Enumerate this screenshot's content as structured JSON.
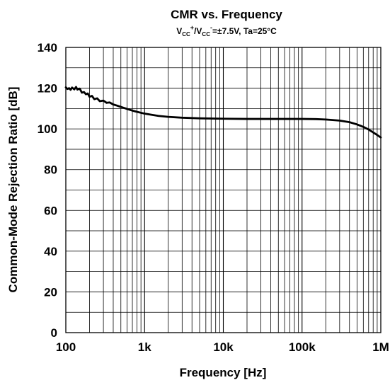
{
  "chart_data": {
    "type": "line",
    "title": "CMR vs. Frequency",
    "subtitle": {
      "v1": "V",
      "v1_sub": "CC",
      "v1_sup": "+",
      "slash": "/",
      "v2": "V",
      "v2_sub": "CC",
      "v2_sup": "-",
      "rest": "=±7.5V, Ta=25°C"
    },
    "xlabel": "Frequency [Hz]",
    "ylabel": "Common-Mode Rejection Ratio [dB]",
    "x_scale": "log",
    "xlim": [
      100,
      1000000
    ],
    "ylim": [
      0,
      140
    ],
    "x_ticks": [
      {
        "value": 100,
        "label": "100"
      },
      {
        "value": 1000,
        "label": "1k"
      },
      {
        "value": 10000,
        "label": "10k"
      },
      {
        "value": 100000,
        "label": "100k"
      },
      {
        "value": 1000000,
        "label": "1M"
      }
    ],
    "y_ticks": [
      {
        "value": 0,
        "label": "0"
      },
      {
        "value": 20,
        "label": "20"
      },
      {
        "value": 40,
        "label": "40"
      },
      {
        "value": 60,
        "label": "60"
      },
      {
        "value": 80,
        "label": "80"
      },
      {
        "value": 100,
        "label": "100"
      },
      {
        "value": 120,
        "label": "120"
      },
      {
        "value": 140,
        "label": "140"
      }
    ],
    "grid": true,
    "series": [
      {
        "color": "#000000",
        "x": [
          100,
          105,
          110,
          115,
          120,
          128,
          135,
          140,
          150,
          160,
          170,
          180,
          190,
          200,
          215,
          230,
          250,
          270,
          300,
          330,
          360,
          400,
          450,
          500,
          600,
          700,
          800,
          1000,
          1200,
          1500,
          2000,
          3000,
          5000,
          10000,
          20000,
          50000,
          100000,
          150000,
          200000,
          300000,
          400000,
          500000,
          600000,
          700000,
          800000,
          900000,
          1000000
        ],
        "y": [
          120.4,
          119.6,
          120.0,
          119.2,
          120.3,
          119.4,
          120.6,
          119.3,
          119.8,
          117.8,
          118.1,
          117.0,
          117.4,
          115.8,
          116.2,
          114.6,
          115.0,
          113.6,
          113.9,
          112.8,
          113.0,
          112.0,
          111.4,
          110.8,
          109.8,
          109.0,
          108.4,
          107.5,
          107.0,
          106.4,
          105.9,
          105.5,
          105.2,
          105.0,
          104.9,
          104.9,
          104.9,
          104.8,
          104.6,
          104.1,
          103.3,
          102.2,
          101.0,
          99.7,
          98.3,
          97.0,
          95.8
        ]
      }
    ]
  }
}
